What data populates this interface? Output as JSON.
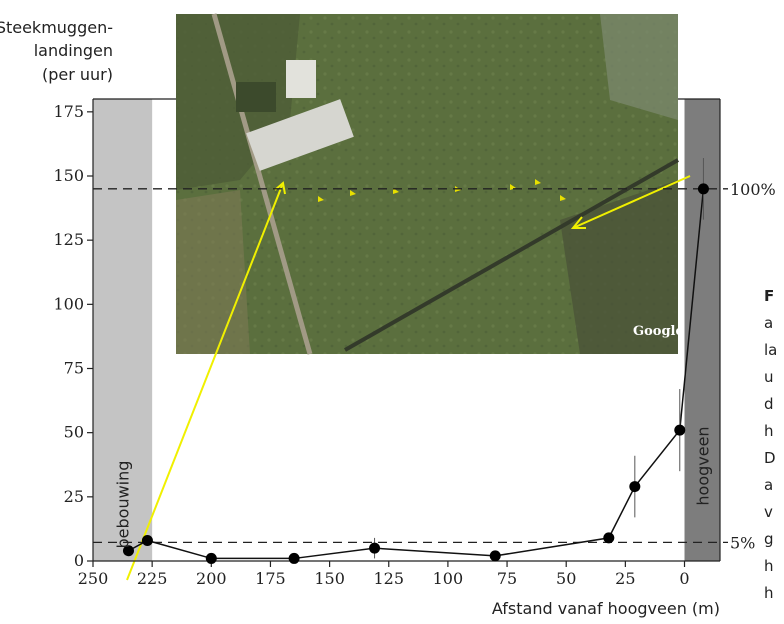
{
  "chart_data": {
    "type": "line",
    "ylabel": [
      "Steekmuggen-",
      "landingen",
      "(per uur)"
    ],
    "xlabel": "Afstand vanaf hoogveen (m)",
    "xlim": [
      250,
      -15
    ],
    "ylim": [
      0,
      180
    ],
    "x_ticks": [
      "250",
      "225",
      "200",
      "175",
      "150",
      "125",
      "100",
      "75",
      "50",
      "25",
      "0"
    ],
    "x_tick_values": [
      250,
      225,
      200,
      175,
      150,
      125,
      100,
      75,
      50,
      25,
      0
    ],
    "y_ticks": [
      "0",
      "25",
      "50",
      "75",
      "100",
      "125",
      "150",
      "175"
    ],
    "y_tick_values": [
      0,
      25,
      50,
      75,
      100,
      125,
      150,
      175
    ],
    "series": [
      {
        "x": [
          235,
          227,
          200,
          165,
          131,
          80,
          32,
          21,
          2,
          -8
        ],
        "y": [
          4,
          8,
          1,
          1,
          5,
          2,
          9,
          29,
          51,
          145
        ],
        "err": [
          0,
          0,
          0,
          0,
          4,
          0,
          0,
          12,
          16,
          12
        ]
      }
    ],
    "regions": [
      {
        "label": "bebouwing",
        "x_start": 250,
        "x_end": 225,
        "color": "#c4c4c4"
      },
      {
        "label": "hoogveen",
        "x_start": 0,
        "x_end": -15,
        "color": "#7d7d7d"
      }
    ],
    "reference_lines": [
      {
        "label": "100%",
        "y": 145
      },
      {
        "label": "5%",
        "y": 7.25
      }
    ],
    "photo": {
      "watermark": "Google"
    }
  },
  "side_text": {
    "bold_start": "F",
    "lines": [
      "a",
      "la",
      "u",
      "d",
      "h",
      "D",
      "a",
      "v",
      "g",
      "h",
      "h"
    ]
  }
}
